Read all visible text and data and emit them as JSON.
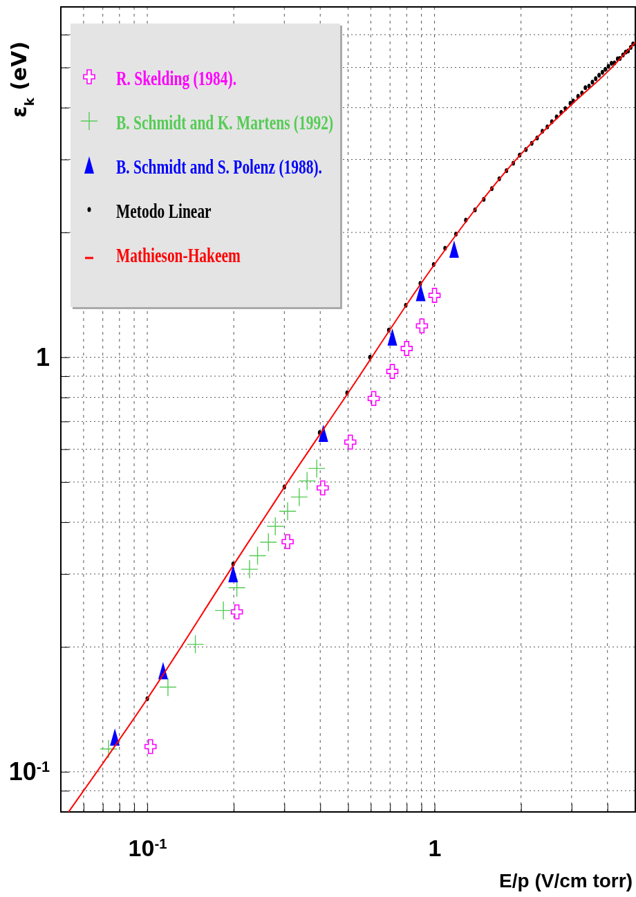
{
  "chart_data": {
    "type": "scatter",
    "xlabel": "E/p (V/cm torr)",
    "ylabel": "ε$_{k}$ (eV)",
    "log": "xy",
    "grid": true,
    "legend": "top left",
    "xlim": [
      0.05,
      5
    ],
    "ylim": [
      0.08,
      7
    ],
    "xticks": [
      {
        "value": 0.05,
        "label": null
      },
      {
        "value": 0.06,
        "label": null
      },
      {
        "value": 0.07,
        "label": null
      },
      {
        "value": 0.08,
        "label": null
      },
      {
        "value": 0.09,
        "label": null
      },
      {
        "value": 0.1,
        "label": "10$^{-1}$"
      },
      {
        "value": 0.2,
        "label": null
      },
      {
        "value": 0.3,
        "label": null
      },
      {
        "value": 0.4,
        "label": null
      },
      {
        "value": 0.5,
        "label": null
      },
      {
        "value": 0.6,
        "label": null
      },
      {
        "value": 0.7,
        "label": null
      },
      {
        "value": 0.8,
        "label": null
      },
      {
        "value": 0.9,
        "label": null
      },
      1,
      {
        "value": 2,
        "label": null
      },
      {
        "value": 3,
        "label": null
      },
      {
        "value": 4,
        "label": null
      },
      {
        "value": 5,
        "label": null
      }
    ],
    "yticks": [
      {
        "value": 0.08,
        "label": null
      },
      {
        "value": 0.09,
        "label": null
      },
      {
        "value": 0.1,
        "label": "10$^{-1}$"
      },
      {
        "value": 0.2,
        "label": null
      },
      {
        "value": 0.3,
        "label": null
      },
      {
        "value": 0.4,
        "label": null
      },
      {
        "value": 0.5,
        "label": null
      },
      {
        "value": 0.6,
        "label": null
      },
      {
        "value": 0.7,
        "label": null
      },
      {
        "value": 0.8,
        "label": null
      },
      {
        "value": 0.9,
        "label": null
      },
      1,
      {
        "value": 2,
        "label": null
      },
      {
        "value": 3,
        "label": null
      },
      {
        "value": 4,
        "label": null
      },
      {
        "value": 5,
        "label": null
      },
      {
        "value": 6,
        "label": null
      },
      {
        "value": 7,
        "label": null
      }
    ],
    "series": [
      {
        "name": "R. Skelding (1984).",
        "color": "#ff00ff",
        "marker": "cross",
        "x": [
          0.1026,
          0.205,
          0.308,
          0.408,
          0.509,
          0.614,
          0.713,
          0.8,
          0.904,
          1.0
        ],
        "values": [
          0.115,
          0.243,
          0.359,
          0.484,
          0.624,
          0.795,
          0.924,
          1.05,
          1.19,
          1.41
        ]
      },
      {
        "name": "B. Schmidt and K. Martens (1992)",
        "color": "#55cc55",
        "marker": "cross",
        "x": [
          0.0733,
          0.118,
          0.147,
          0.184,
          0.205,
          0.227,
          0.242,
          0.264,
          0.279,
          0.308,
          0.338,
          0.36,
          0.389
        ],
        "values": [
          0.1135,
          0.16,
          0.203,
          0.245,
          0.278,
          0.308,
          0.332,
          0.358,
          0.391,
          0.425,
          0.46,
          0.503,
          0.539
        ]
      },
      {
        "name": "B. Schmidt and S. Polenz (1988).",
        "color": "#0000ff",
        "marker": "triangle",
        "x": [
          0.0771,
          0.1135,
          0.199,
          0.41,
          0.713,
          0.895,
          1.17
        ],
        "values": [
          0.121,
          0.175,
          0.3,
          0.654,
          1.117,
          1.43,
          1.82
        ]
      },
      {
        "name": "Metodo Linear",
        "color": "#000000",
        "marker": "circle",
        "x": [
          0.1,
          0.199,
          0.3,
          0.398,
          0.496,
          0.596,
          0.693,
          0.794,
          0.892,
          0.993,
          1.088,
          1.187,
          1.285,
          1.383,
          1.484,
          1.583,
          1.68,
          1.78,
          1.88,
          1.978,
          2.08,
          2.18,
          2.276,
          2.374,
          2.47,
          2.56,
          2.66,
          2.76,
          2.855,
          2.97,
          3.04,
          3.16,
          3.26,
          3.35,
          3.45,
          3.545,
          3.64,
          3.74,
          3.84,
          3.93,
          4.03,
          4.13,
          4.23,
          4.34,
          4.42,
          4.53,
          4.63,
          4.72,
          4.82,
          4.91
        ],
        "values": [
          0.15,
          0.317,
          0.486,
          0.658,
          0.821,
          1.0,
          1.163,
          1.334,
          1.507,
          1.674,
          1.832,
          1.982,
          2.141,
          2.267,
          2.404,
          2.551,
          2.695,
          2.818,
          2.937,
          3.075,
          3.17,
          3.28,
          3.38,
          3.51,
          3.594,
          3.7,
          3.8,
          3.896,
          3.98,
          4.1,
          4.15,
          4.26,
          4.34,
          4.47,
          4.51,
          4.61,
          4.7,
          4.79,
          4.87,
          4.95,
          5.03,
          5.12,
          5.13,
          5.25,
          5.26,
          5.36,
          5.45,
          5.48,
          5.59,
          5.7
        ]
      },
      {
        "name": "Mathieson-Hakeem",
        "color": "#ff0000",
        "type": "line",
        "marker": "none",
        "line_style": "solid",
        "x": [
          0.0532,
          0.1,
          0.2,
          0.3,
          0.5,
          1,
          2,
          3,
          4,
          5
        ],
        "values": [
          0.08,
          0.15,
          0.316,
          0.486,
          0.82,
          1.675,
          3.09,
          4.07,
          4.88,
          5.75
        ]
      }
    ]
  }
}
